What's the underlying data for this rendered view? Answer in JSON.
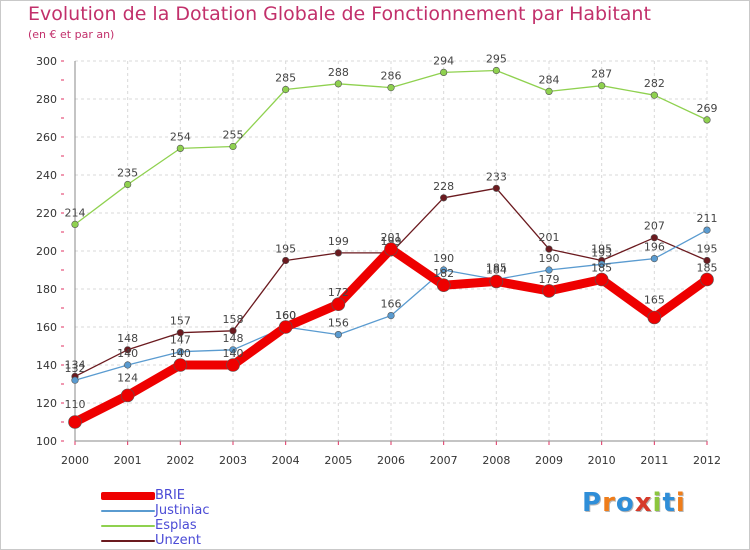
{
  "chart_data": {
    "type": "line",
    "title": "Evolution de la Dotation Globale de Fonctionnement par Habitant",
    "subtitle": "(en € et par an)",
    "x": [
      "2000",
      "2001",
      "2002",
      "2003",
      "2004",
      "2005",
      "2006",
      "2007",
      "2008",
      "2009",
      "2010",
      "2011",
      "2012"
    ],
    "ylim": [
      100,
      300
    ],
    "yticks": [
      100,
      120,
      140,
      160,
      180,
      200,
      220,
      240,
      260,
      280,
      300
    ],
    "grid": true,
    "legend_position": "bottom-left",
    "series": [
      {
        "name": "Unzent",
        "color": "#6b1a1f",
        "values": [
          134,
          148,
          157,
          158,
          195,
          199,
          199,
          228,
          233,
          201,
          195,
          207,
          195
        ],
        "labels": [
          "134",
          "148",
          "157",
          "158",
          "195",
          "199",
          "199",
          "228",
          "233",
          "201",
          "195",
          "207",
          "195"
        ]
      },
      {
        "name": "Justiniac",
        "color": "#5a9bd0",
        "values": [
          132,
          140,
          147,
          148,
          160,
          156,
          166,
          190,
          185,
          190,
          193,
          196,
          211
        ],
        "labels": [
          "132",
          "140",
          "147",
          "148",
          "160",
          "156",
          "166",
          "190",
          "185",
          "190",
          "193",
          "196",
          "211"
        ]
      },
      {
        "name": "Esplas",
        "color": "#8fd14f",
        "values": [
          214,
          235,
          254,
          255,
          285,
          288,
          286,
          294,
          295,
          284,
          287,
          282,
          269
        ],
        "labels": [
          "214",
          "235",
          "254",
          "255",
          "285",
          "288",
          "286",
          "294",
          "295",
          "284",
          "287",
          "282",
          "269"
        ]
      },
      {
        "name": "BRIE",
        "color": "#ee0000",
        "values": [
          110,
          124,
          140,
          140,
          160,
          172,
          201,
          182,
          184,
          179,
          185,
          165,
          185
        ],
        "labels": [
          "110",
          "124",
          "140",
          "140",
          "160",
          "172",
          "201",
          "182",
          "184",
          "179",
          "185",
          "165",
          "185"
        ]
      }
    ]
  },
  "legend": [
    {
      "name": "BRIE",
      "color": "#ee0000"
    },
    {
      "name": "Justiniac",
      "color": "#5a9bd0"
    },
    {
      "name": "Esplas",
      "color": "#8fd14f"
    },
    {
      "name": "Unzent",
      "color": "#6b1a1f"
    }
  ],
  "logo": {
    "text": "Proxiti",
    "letters": [
      {
        "ch": "P",
        "color": "#2f8ed8"
      },
      {
        "ch": "r",
        "color": "#ef7d1a"
      },
      {
        "ch": "o",
        "color": "#2f8ed8"
      },
      {
        "ch": "x",
        "color": "#d63a2a"
      },
      {
        "ch": "i",
        "color": "#8cc63e"
      },
      {
        "ch": "t",
        "color": "#2f8ed8"
      },
      {
        "ch": "i",
        "color": "#ef7d1a"
      }
    ]
  }
}
